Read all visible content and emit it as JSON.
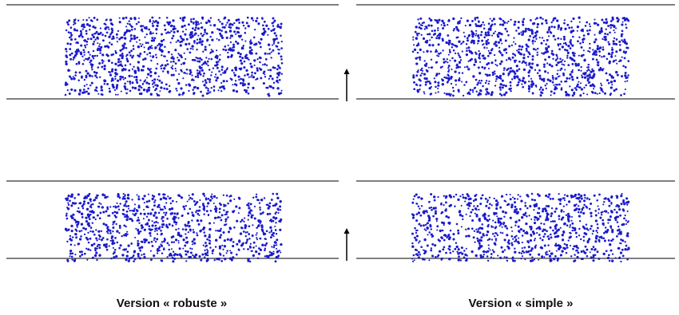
{
  "captions": {
    "left": "Version « robuste »",
    "right": "Version « simple »"
  },
  "colors": {
    "particles": "#1a1acc",
    "walls": "#555555",
    "arrow": "#000000",
    "background": "#ffffff"
  },
  "panels": [
    {
      "row": "top",
      "column": "left",
      "variant": "robuste"
    },
    {
      "row": "top",
      "column": "right",
      "variant": "simple"
    },
    {
      "row": "bottom",
      "column": "left",
      "variant": "robuste"
    },
    {
      "row": "bottom",
      "column": "right",
      "variant": "simple"
    }
  ],
  "arrows": [
    {
      "row": "top",
      "direction": "up"
    },
    {
      "row": "bottom",
      "direction": "up"
    }
  ]
}
